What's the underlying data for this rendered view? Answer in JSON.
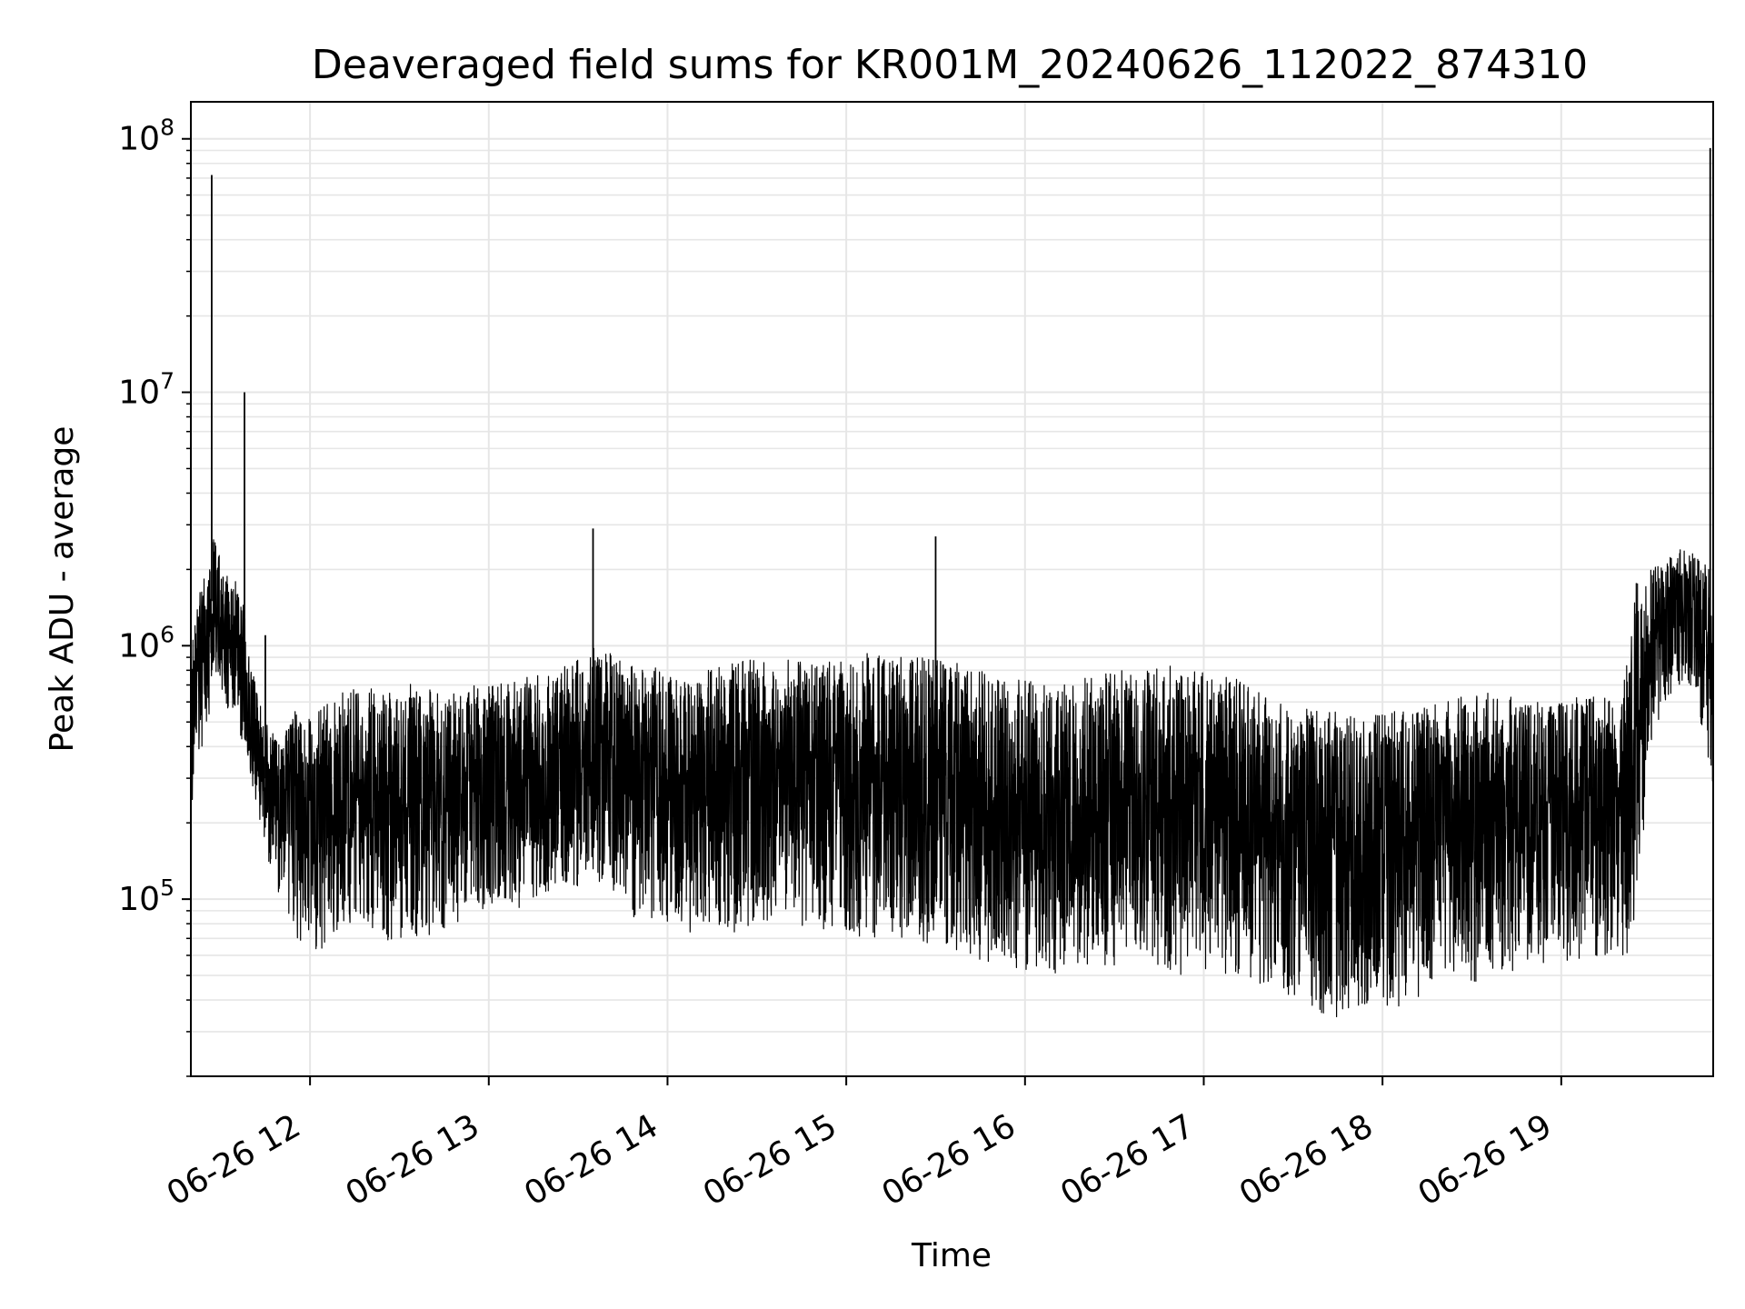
{
  "chart_data": {
    "type": "line",
    "title": "Deaveraged field sums for KR001M_20240626_112022_874310",
    "xlabel": "Time",
    "ylabel": "Peak ADU - average",
    "x_type": "datetime",
    "y_scale": "log",
    "xlim": [
      "2024-06-26 11:20",
      "2024-06-26 19:51"
    ],
    "ylim": [
      20000,
      140000000
    ],
    "grid": true,
    "x_tick_labels": [
      "06-26 12",
      "06-26 13",
      "06-26 14",
      "06-26 15",
      "06-26 16",
      "06-26 17",
      "06-26 18",
      "06-26 19"
    ],
    "y_tick_labels": [
      {
        "base": "10",
        "exp": "5",
        "value": 100000
      },
      {
        "base": "10",
        "exp": "6",
        "value": 1000000
      },
      {
        "base": "10",
        "exp": "7",
        "value": 10000000
      },
      {
        "base": "10",
        "exp": "8",
        "value": 100000000
      }
    ],
    "line_color": "#000000",
    "series": [
      {
        "x": [
          "2024-06-26 11:20",
          "2024-06-26 11:22",
          "2024-06-26 11:25",
          "2024-06-26 11:27",
          "2024-06-26 11:28",
          "2024-06-26 11:30",
          "2024-06-26 11:32",
          "2024-06-26 11:35",
          "2024-06-26 11:38",
          "2024-06-26 11:40",
          "2024-06-26 11:43",
          "2024-06-26 11:45",
          "2024-06-26 11:48",
          "2024-06-26 11:50",
          "2024-06-26 11:53",
          "2024-06-26 11:55",
          "2024-06-26 11:58",
          "2024-06-26 12:00",
          "2024-06-26 12:05",
          "2024-06-26 12:10",
          "2024-06-26 12:15",
          "2024-06-26 12:20",
          "2024-06-26 12:25",
          "2024-06-26 12:30",
          "2024-06-26 12:35",
          "2024-06-26 12:40",
          "2024-06-26 12:45",
          "2024-06-26 12:50",
          "2024-06-26 12:55",
          "2024-06-26 13:00",
          "2024-06-26 13:10",
          "2024-06-26 13:20",
          "2024-06-26 13:30",
          "2024-06-26 13:35",
          "2024-06-26 13:40",
          "2024-06-26 13:45",
          "2024-06-26 13:50",
          "2024-06-26 14:00",
          "2024-06-26 14:10",
          "2024-06-26 14:20",
          "2024-06-26 14:30",
          "2024-06-26 14:40",
          "2024-06-26 14:50",
          "2024-06-26 15:00",
          "2024-06-26 15:10",
          "2024-06-26 15:20",
          "2024-06-26 15:30",
          "2024-06-26 15:40",
          "2024-06-26 15:50",
          "2024-06-26 16:00",
          "2024-06-26 16:10",
          "2024-06-26 16:20",
          "2024-06-26 16:30",
          "2024-06-26 16:40",
          "2024-06-26 16:50",
          "2024-06-26 17:00",
          "2024-06-26 17:10",
          "2024-06-26 17:20",
          "2024-06-26 17:30",
          "2024-06-26 17:40",
          "2024-06-26 17:50",
          "2024-06-26 18:00",
          "2024-06-26 18:10",
          "2024-06-26 18:20",
          "2024-06-26 18:30",
          "2024-06-26 18:40",
          "2024-06-26 18:50",
          "2024-06-26 19:00",
          "2024-06-26 19:10",
          "2024-06-26 19:15",
          "2024-06-26 19:20",
          "2024-06-26 19:25",
          "2024-06-26 19:30",
          "2024-06-26 19:35",
          "2024-06-26 19:40",
          "2024-06-26 19:45",
          "2024-06-26 19:50"
        ],
        "y": [
          450000,
          700000,
          1000000,
          72000000,
          1200000,
          1500000,
          900000,
          1200000,
          10000000,
          700000,
          500000,
          1100000,
          450000,
          300000,
          200000,
          110000,
          90000,
          100000,
          150000,
          250000,
          350000,
          600000,
          300000,
          250000,
          350000,
          300000,
          320000,
          280000,
          300000,
          300000,
          250000,
          280000,
          350000,
          2900000,
          280000,
          260000,
          300000,
          280000,
          300000,
          300000,
          320000,
          250000,
          250000,
          280000,
          300000,
          250000,
          2700000,
          220000,
          200000,
          150000,
          120000,
          110000,
          100000,
          100000,
          110000,
          110000,
          130000,
          100000,
          70000,
          60000,
          60000,
          70000,
          80000,
          120000,
          180000,
          250000,
          300000,
          300000,
          320000,
          280000,
          250000,
          350000,
          600000,
          900000,
          1000000,
          900000,
          92000000
        ],
        "lo": [
          200000,
          300000,
          400000,
          600000,
          800000,
          700000,
          500000,
          500000,
          400000,
          300000,
          200000,
          150000,
          120000,
          100000,
          80000,
          65000,
          60000,
          60000,
          65000,
          70000,
          80000,
          75000,
          70000,
          65000,
          70000,
          70000,
          75000,
          80000,
          90000,
          90000,
          90000,
          100000,
          110000,
          120000,
          100000,
          90000,
          80000,
          75000,
          70000,
          70000,
          75000,
          80000,
          75000,
          70000,
          70000,
          70000,
          65000,
          60000,
          55000,
          50000,
          50000,
          55000,
          55000,
          55000,
          50000,
          50000,
          50000,
          45000,
          40000,
          35000,
          33000,
          35000,
          40000,
          45000,
          45000,
          50000,
          55000,
          55000,
          60000,
          55000,
          50000,
          80000,
          400000,
          600000,
          700000,
          650000,
          250000
        ],
        "hi": [
          1000000,
          1500000,
          2000000,
          2500000,
          2800000,
          2200000,
          1900000,
          1800000,
          1400000,
          900000,
          600000,
          500000,
          450000,
          450000,
          500000,
          550000,
          500000,
          550000,
          600000,
          650000,
          700000,
          700000,
          650000,
          700000,
          750000,
          700000,
          650000,
          650000,
          700000,
          700000,
          750000,
          800000,
          900000,
          1000000,
          950000,
          900000,
          850000,
          800000,
          800000,
          850000,
          900000,
          900000,
          850000,
          900000,
          950000,
          900000,
          900000,
          850000,
          800000,
          750000,
          700000,
          750000,
          800000,
          800000,
          850000,
          800000,
          750000,
          650000,
          600000,
          550000,
          550000,
          550000,
          550000,
          600000,
          650000,
          650000,
          600000,
          600000,
          650000,
          650000,
          600000,
          1800000,
          2000000,
          2200000,
          2400000,
          2300000,
          2000000
        ]
      }
    ]
  }
}
